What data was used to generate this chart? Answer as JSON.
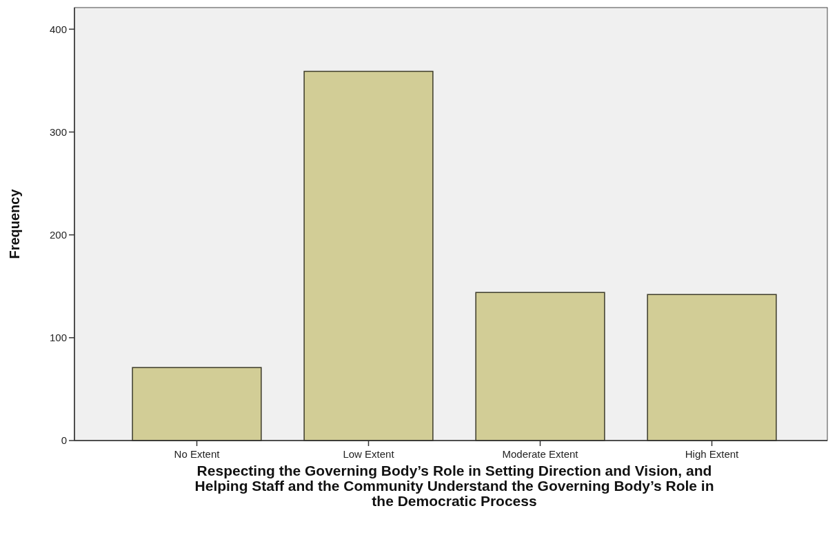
{
  "chart_data": {
    "type": "bar",
    "xlabel": "Respecting the Governing Body’s Role in Setting Direction and Vision, and\nHelping Staff and the Community Understand the Governing Body’s Role in\nthe Democratic Process",
    "ylabel": "Frequency",
    "categories": [
      "No Extent",
      "Low Extent",
      "Moderate Extent",
      "High Extent"
    ],
    "values": [
      71,
      359,
      144,
      142
    ],
    "color": "#d2cd96",
    "ylim": [
      0,
      421
    ],
    "yticks": [
      0,
      100,
      200,
      300,
      400
    ],
    "grid": false
  }
}
